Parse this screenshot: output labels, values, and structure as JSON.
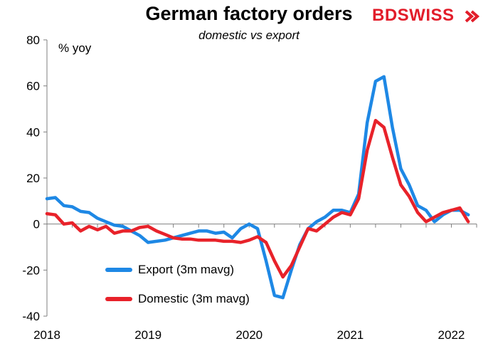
{
  "logo": {
    "text_bd": "BD",
    "text_swiss": "SWISS"
  },
  "colors": {
    "export": "#1e88e5",
    "domestic": "#e8222a",
    "axis": "#7f7f7f"
  },
  "chart_data": {
    "type": "line",
    "title": "German factory orders",
    "subtitle": "domestic vs export",
    "ylabel": "% yoy",
    "xlabel": "",
    "ylim": [
      -40,
      80
    ],
    "yticks": [
      80,
      60,
      40,
      20,
      0,
      -20,
      -40
    ],
    "xlim": [
      2018.0,
      2022.25
    ],
    "xticks": [
      "2018",
      "2019",
      "2020",
      "2021",
      "2022"
    ],
    "legend_position": "lower-left",
    "series": [
      {
        "name": "Export (3m mavg)",
        "x": [
          2018.0,
          2018.083,
          2018.167,
          2018.25,
          2018.333,
          2018.417,
          2018.5,
          2018.583,
          2018.667,
          2018.75,
          2018.833,
          2018.917,
          2019.0,
          2019.083,
          2019.167,
          2019.25,
          2019.333,
          2019.417,
          2019.5,
          2019.583,
          2019.667,
          2019.75,
          2019.833,
          2019.917,
          2020.0,
          2020.083,
          2020.167,
          2020.25,
          2020.333,
          2020.417,
          2020.5,
          2020.583,
          2020.667,
          2020.75,
          2020.833,
          2020.917,
          2021.0,
          2021.083,
          2021.167,
          2021.25,
          2021.333,
          2021.417,
          2021.5,
          2021.583,
          2021.667,
          2021.75,
          2021.833,
          2021.917,
          2022.0,
          2022.083,
          2022.167
        ],
        "values": [
          11,
          11.5,
          8,
          7.5,
          5.5,
          5,
          2.5,
          1,
          -0.5,
          -1,
          -3,
          -5,
          -8,
          -7.5,
          -7,
          -6,
          -5,
          -4,
          -3,
          -3,
          -4,
          -3.5,
          -6,
          -2,
          0,
          -2,
          -16,
          -31,
          -32,
          -20,
          -9,
          -2,
          1,
          3,
          6,
          6,
          5,
          13,
          44,
          62,
          64,
          42,
          24,
          17,
          8,
          6,
          1,
          4,
          6,
          6,
          4
        ],
        "color": "#1e88e5"
      },
      {
        "name": "Domestic (3m mavg)",
        "x": [
          2018.0,
          2018.083,
          2018.167,
          2018.25,
          2018.333,
          2018.417,
          2018.5,
          2018.583,
          2018.667,
          2018.75,
          2018.833,
          2018.917,
          2019.0,
          2019.083,
          2019.167,
          2019.25,
          2019.333,
          2019.417,
          2019.5,
          2019.583,
          2019.667,
          2019.75,
          2019.833,
          2019.917,
          2020.0,
          2020.083,
          2020.167,
          2020.25,
          2020.333,
          2020.417,
          2020.5,
          2020.583,
          2020.667,
          2020.75,
          2020.833,
          2020.917,
          2021.0,
          2021.083,
          2021.167,
          2021.25,
          2021.333,
          2021.417,
          2021.5,
          2021.583,
          2021.667,
          2021.75,
          2021.833,
          2021.917,
          2022.0,
          2022.083,
          2022.167
        ],
        "values": [
          4.5,
          4,
          0,
          0.5,
          -3,
          -1,
          -2.5,
          -1,
          -4,
          -3,
          -3,
          -1.5,
          -1,
          -3,
          -4.5,
          -6,
          -6.5,
          -6.5,
          -7,
          -7,
          -7,
          -7.5,
          -7.5,
          -8,
          -7,
          -5.5,
          -8,
          -16,
          -23,
          -18,
          -10,
          -2,
          -3,
          0,
          3,
          5,
          4,
          11,
          32,
          45,
          42,
          29,
          17,
          12,
          5,
          1,
          3,
          5,
          6,
          7,
          1
        ],
        "color": "#e8222a"
      }
    ]
  }
}
